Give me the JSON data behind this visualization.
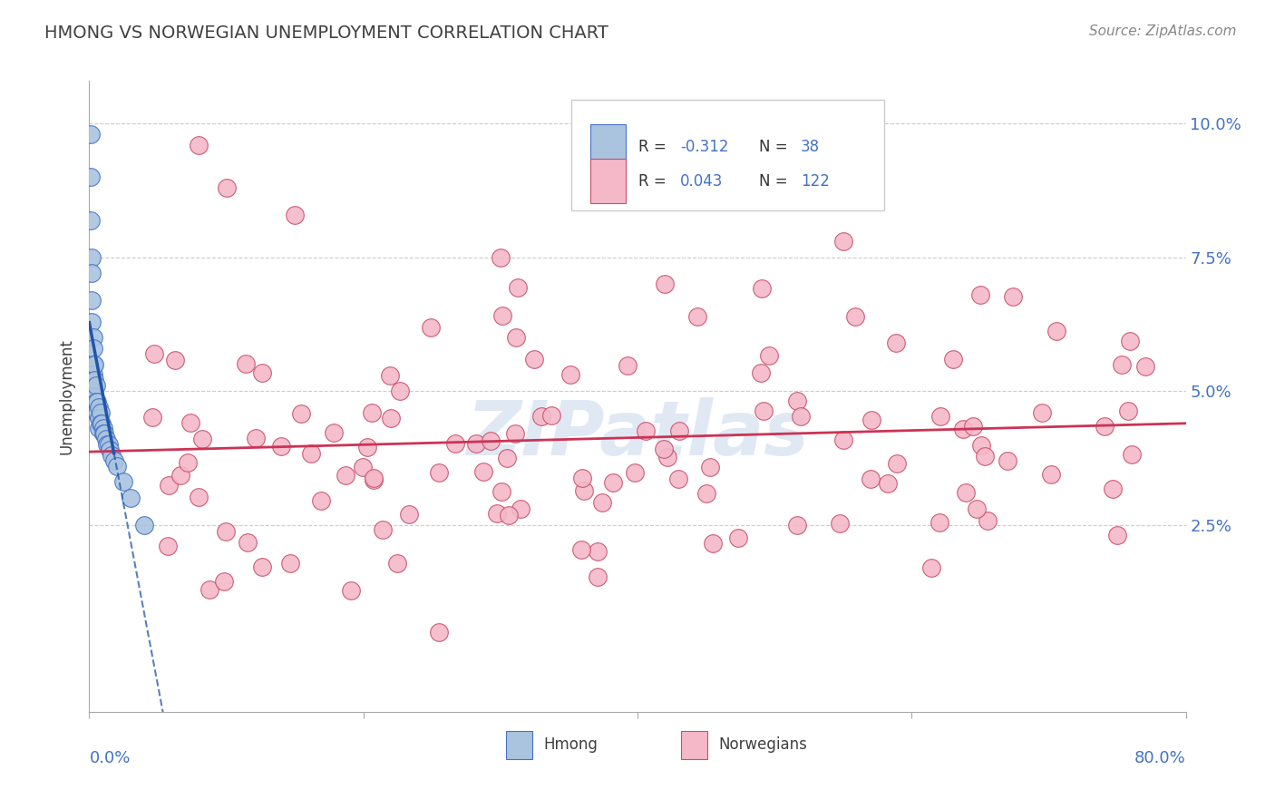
{
  "title": "HMONG VS NORWEGIAN UNEMPLOYMENT CORRELATION CHART",
  "source": "Source: ZipAtlas.com",
  "ylabel": "Unemployment",
  "xlim": [
    0.0,
    0.8
  ],
  "ylim": [
    -0.01,
    0.108
  ],
  "legend_r_hmong": "-0.312",
  "legend_n_hmong": "38",
  "legend_r_norw": "0.043",
  "legend_n_norw": "122",
  "hmong_color": "#aac4e0",
  "norw_color": "#f4b8c8",
  "hmong_edge_color": "#4472c4",
  "norw_edge_color": "#c8506a",
  "hmong_line_color": "#2255aa",
  "norw_line_color": "#cc3355",
  "grid_color": "#cccccc",
  "background_color": "#ffffff",
  "title_color": "#404040",
  "axis_label_color": "#4472c4",
  "source_color": "#888888",
  "watermark_color": "#ccdaee",
  "ytick_vals": [
    0.025,
    0.05,
    0.075,
    0.1
  ],
  "ytick_labels": [
    "2.5%",
    "5.0%",
    "7.5%",
    "10.0%"
  ]
}
